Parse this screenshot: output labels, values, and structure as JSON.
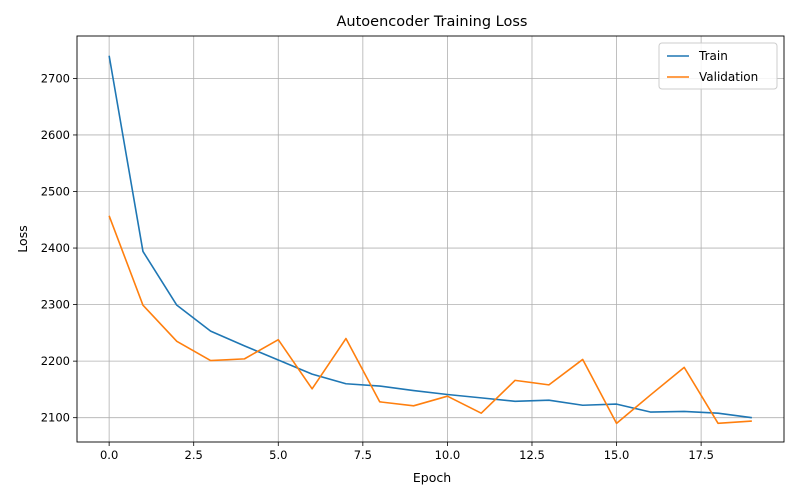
{
  "chart_data": {
    "type": "line",
    "title": "Autoencoder Training Loss",
    "xlabel": "Epoch",
    "ylabel": "Loss",
    "xlim": [
      -0.95,
      19.95
    ],
    "ylim": [
      2057,
      2775
    ],
    "xticks": [
      0.0,
      2.5,
      5.0,
      7.5,
      10.0,
      12.5,
      15.0,
      17.5
    ],
    "xtick_labels": [
      "0.0",
      "2.5",
      "5.0",
      "7.5",
      "10.0",
      "12.5",
      "15.0",
      "17.5"
    ],
    "yticks": [
      2100,
      2200,
      2300,
      2400,
      2500,
      2600,
      2700
    ],
    "ytick_labels": [
      "2100",
      "2200",
      "2300",
      "2400",
      "2500",
      "2600",
      "2700"
    ],
    "grid": true,
    "legend_position": "top-right",
    "x": [
      0,
      1,
      2,
      3,
      4,
      5,
      6,
      7,
      8,
      9,
      10,
      11,
      12,
      13,
      14,
      15,
      16,
      17,
      18,
      19
    ],
    "series": [
      {
        "name": "Train",
        "color": "#1f77b4",
        "values": [
          2740,
          2394,
          2299,
          2253,
          2227,
          2202,
          2177,
          2160,
          2156,
          2148,
          2141,
          2135,
          2129,
          2131,
          2122,
          2124,
          2110,
          2111,
          2108,
          2100
        ]
      },
      {
        "name": "Validation",
        "color": "#ff7f0e",
        "values": [
          2457,
          2299,
          2235,
          2201,
          2204,
          2238,
          2151,
          2240,
          2128,
          2121,
          2138,
          2108,
          2166,
          2158,
          2203,
          2090,
          2140,
          2189,
          2090,
          2094
        ]
      }
    ]
  }
}
